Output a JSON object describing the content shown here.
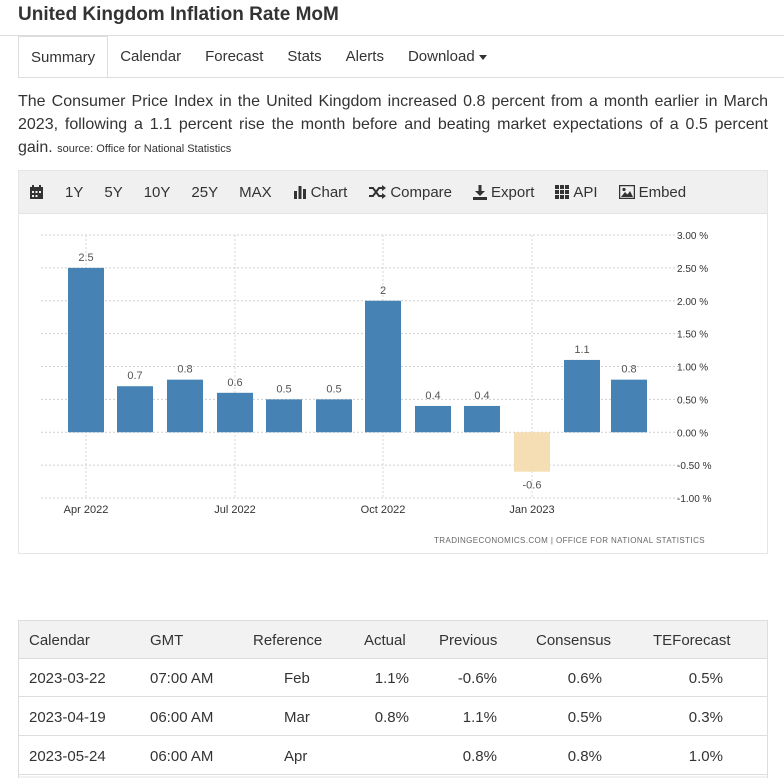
{
  "page": {
    "title": "United Kingdom Inflation Rate MoM"
  },
  "tabs": [
    {
      "label": "Summary"
    },
    {
      "label": "Calendar"
    },
    {
      "label": "Forecast"
    },
    {
      "label": "Stats"
    },
    {
      "label": "Alerts"
    },
    {
      "label": "Download"
    }
  ],
  "description": {
    "text": "The Consumer Price Index in the United Kingdom increased 0.8 percent from a month earlier in March 2023, following a 1.1 percent rise the month before and beating market expectations of a 0.5 percent gain.",
    "source_label": "source:",
    "source_name": "Office for National Statistics"
  },
  "toolbar": {
    "ranges": [
      "1Y",
      "5Y",
      "10Y",
      "25Y",
      "MAX"
    ],
    "chart_label": "Chart",
    "compare_label": "Compare",
    "export_label": "Export",
    "api_label": "API",
    "embed_label": "Embed",
    "icons": [
      "calendar-icon",
      "bar-chart-icon",
      "shuffle-icon",
      "download-icon",
      "grid-icon",
      "image-icon"
    ]
  },
  "chart_data": {
    "type": "bar",
    "categories": [
      "Apr 2022",
      "May 2022",
      "Jun 2022",
      "Jul 2022",
      "Aug 2022",
      "Sep 2022",
      "Oct 2022",
      "Nov 2022",
      "Dec 2022",
      "Jan 2023",
      "Feb 2023",
      "Mar 2023"
    ],
    "values": [
      2.5,
      0.7,
      0.8,
      0.6,
      0.5,
      0.5,
      2,
      0.4,
      0.4,
      -0.6,
      1.1,
      0.8
    ],
    "value_labels": [
      "2.5",
      "0.7",
      "0.8",
      "0.6",
      "0.5",
      "0.5",
      "2",
      "0.4",
      "0.4",
      "-0.6",
      "1.1",
      "0.8"
    ],
    "x_tick_labels": [
      {
        "index": 0,
        "label": "Apr 2022"
      },
      {
        "index": 3,
        "label": "Jul 2022"
      },
      {
        "index": 6,
        "label": "Oct 2022"
      },
      {
        "index": 9,
        "label": "Jan 2023"
      }
    ],
    "y_ticks": [
      3.0,
      2.5,
      2.0,
      1.5,
      1.0,
      0.5,
      0.0,
      -0.5,
      -1.0
    ],
    "y_tick_labels": [
      "3.00 %",
      "2.50 %",
      "2.00 %",
      "1.50 %",
      "1.00 %",
      "0.50 %",
      "0.00 %",
      "-0.50 %",
      "-1.00 %"
    ],
    "ylim": [
      -1.0,
      3.0
    ],
    "grid": true,
    "colors": {
      "positive": "#4682b4",
      "negative": "#f5deb3"
    },
    "footer": "TRADINGECONOMICS.COM  |  OFFICE FOR NATIONAL STATISTICS",
    "title": "",
    "xlabel": "",
    "ylabel": ""
  },
  "table": {
    "headers": [
      "Calendar",
      "GMT",
      "Reference",
      "Actual",
      "Previous",
      "Consensus",
      "TEForecast"
    ],
    "rows": [
      [
        "2023-03-22",
        "07:00 AM",
        "Feb",
        "1.1%",
        "-0.6%",
        "0.6%",
        "0.5%"
      ],
      [
        "2023-04-19",
        "06:00 AM",
        "Mar",
        "0.8%",
        "1.1%",
        "0.5%",
        "0.3%"
      ],
      [
        "2023-05-24",
        "06:00 AM",
        "Apr",
        "",
        "0.8%",
        "0.8%",
        "1.0%"
      ]
    ]
  }
}
